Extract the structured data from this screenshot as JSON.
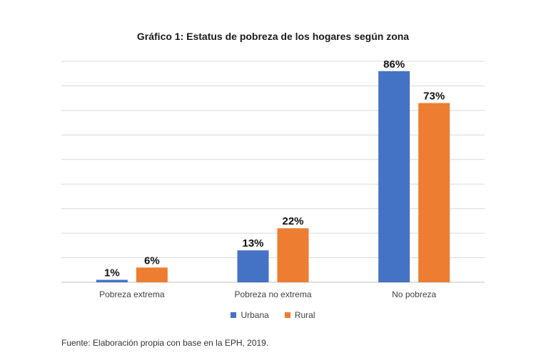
{
  "chart_data": {
    "type": "bar",
    "title": "Gráfico 1: Estatus de pobreza de los hogares según zona",
    "categories": [
      "Pobreza extrema",
      "Pobreza no extrema",
      "No pobreza"
    ],
    "series": [
      {
        "name": "Urbana",
        "values": [
          1,
          13,
          86
        ],
        "labels": [
          "1%",
          "13%",
          "86%"
        ],
        "color": "#4472C4"
      },
      {
        "name": "Rural",
        "values": [
          6,
          22,
          73
        ],
        "labels": [
          "6%",
          "22%",
          "73%"
        ],
        "color": "#ED7D31"
      }
    ],
    "xlabel": "",
    "ylabel": "",
    "ylim": [
      0,
      90
    ],
    "grid": true,
    "legend_position": "bottom"
  },
  "source_note": "Fuente: Elaboración propia con base en la EPH, 2019."
}
